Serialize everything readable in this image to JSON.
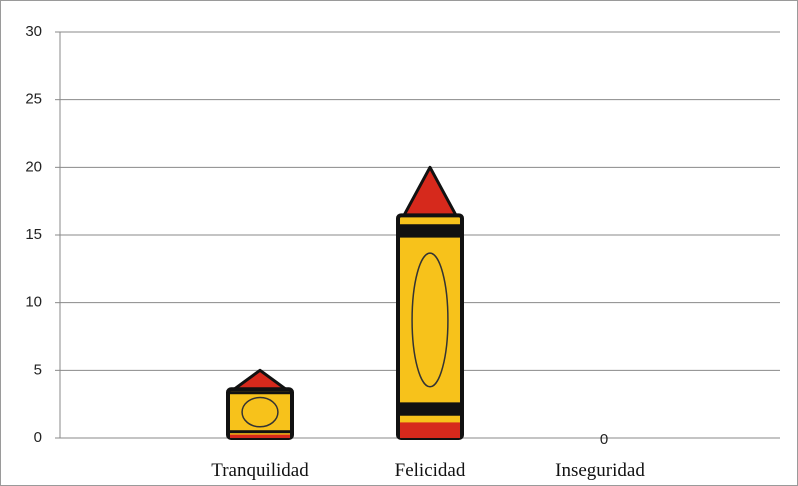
{
  "chart_data": {
    "type": "bar",
    "categories": [
      "Tranquilidad",
      "Felicidad",
      "Inseguridad"
    ],
    "values": [
      5,
      20,
      0
    ],
    "color": "#f7c21b",
    "tip_color": "#d6291c",
    "ylim": [
      0,
      30
    ],
    "yticks": [
      0,
      5,
      10,
      15,
      20,
      25,
      30
    ],
    "grid": true
  }
}
